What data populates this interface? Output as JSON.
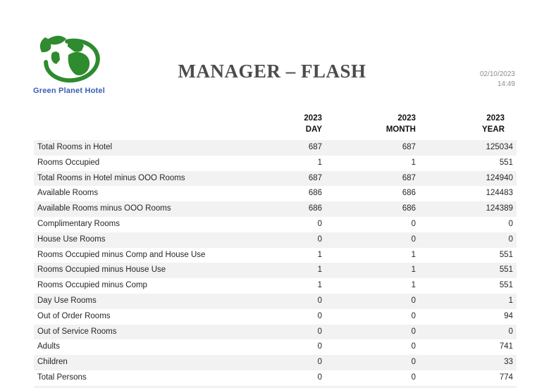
{
  "brand": {
    "name": "Green Planet Hotel",
    "logo_green": "#2e8b2e",
    "name_blue": "#3a60b0"
  },
  "header": {
    "title": "MANAGER – FLASH",
    "date": "02/10/2023",
    "time": "14:49"
  },
  "colors": {
    "row_shade": "#f2f2f2",
    "title_gray": "#4c4c4c",
    "datetime_gray": "#8c8c8c",
    "body_text": "#262626"
  },
  "table": {
    "columns": [
      {
        "line1": "2023",
        "line2": "DAY"
      },
      {
        "line1": "2023",
        "line2": "MONTH"
      },
      {
        "line1": "2023",
        "line2": "YEAR"
      }
    ],
    "rows": [
      {
        "label": "Total Rooms in Hotel",
        "day": "687",
        "month": "687",
        "year": "125034"
      },
      {
        "label": "Rooms Occupied",
        "day": "1",
        "month": "1",
        "year": "551"
      },
      {
        "label": "Total Rooms in Hotel minus OOO Rooms",
        "day": "687",
        "month": "687",
        "year": "124940"
      },
      {
        "label": "Available Rooms",
        "day": "686",
        "month": "686",
        "year": "124483"
      },
      {
        "label": "Available Rooms minus OOO Rooms",
        "day": "686",
        "month": "686",
        "year": "124389"
      },
      {
        "label": "Complimentary Rooms",
        "day": "0",
        "month": "0",
        "year": "0"
      },
      {
        "label": "House Use Rooms",
        "day": "0",
        "month": "0",
        "year": "0"
      },
      {
        "label": "Rooms Occupied minus Comp and House Use",
        "day": "1",
        "month": "1",
        "year": "551"
      },
      {
        "label": "Rooms Occupied minus House Use",
        "day": "1",
        "month": "1",
        "year": "551"
      },
      {
        "label": "Rooms Occupied minus Comp",
        "day": "1",
        "month": "1",
        "year": "551"
      },
      {
        "label": "Day Use Rooms",
        "day": "0",
        "month": "0",
        "year": "1"
      },
      {
        "label": "Out of Order Rooms",
        "day": "0",
        "month": "0",
        "year": "94"
      },
      {
        "label": "Out of Service Rooms",
        "day": "0",
        "month": "0",
        "year": "0"
      },
      {
        "label": "Adults",
        "day": "0",
        "month": "0",
        "year": "741"
      },
      {
        "label": "Children",
        "day": "0",
        "month": "0",
        "year": "33"
      },
      {
        "label": "Total Persons",
        "day": "0",
        "month": "0",
        "year": "774"
      }
    ]
  }
}
